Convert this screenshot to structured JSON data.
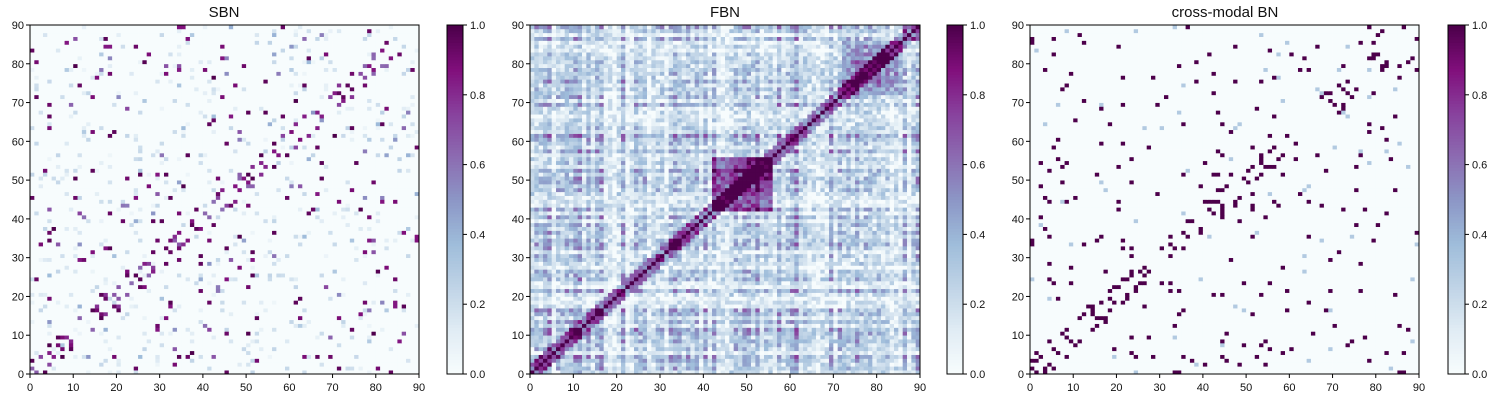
{
  "chart_data": [
    {
      "type": "heatmap",
      "title": "SBN",
      "xlim": [
        0,
        90
      ],
      "ylim": [
        0,
        90
      ],
      "x_ticks": [
        "0",
        "10",
        "20",
        "30",
        "40",
        "50",
        "60",
        "70",
        "80",
        "90"
      ],
      "y_ticks": [
        "0",
        "10",
        "20",
        "30",
        "40",
        "50",
        "60",
        "70",
        "80",
        "90"
      ],
      "matrix_size": 90,
      "pattern": "sparse",
      "colorbar": {
        "range": [
          0.0,
          1.0
        ],
        "ticks": [
          "0.0",
          "0.2",
          "0.4",
          "0.6",
          "0.8",
          "1.0"
        ]
      }
    },
    {
      "type": "heatmap",
      "title": "FBN",
      "xlim": [
        0,
        90
      ],
      "ylim": [
        0,
        90
      ],
      "x_ticks": [
        "0",
        "10",
        "20",
        "30",
        "40",
        "50",
        "60",
        "70",
        "80",
        "90"
      ],
      "y_ticks": [
        "0",
        "10",
        "20",
        "30",
        "40",
        "50",
        "60",
        "70",
        "80",
        "90"
      ],
      "matrix_size": 90,
      "pattern": "dense",
      "colorbar": {
        "range": [
          0.0,
          1.0
        ],
        "ticks": [
          "0.0",
          "0.2",
          "0.4",
          "0.6",
          "0.8",
          "1.0"
        ]
      }
    },
    {
      "type": "heatmap",
      "title": "cross-modal BN",
      "xlim": [
        0,
        90
      ],
      "ylim": [
        0,
        90
      ],
      "x_ticks": [
        "0",
        "10",
        "20",
        "30",
        "40",
        "50",
        "60",
        "70",
        "80",
        "90"
      ],
      "y_ticks": [
        "0",
        "10",
        "20",
        "30",
        "40",
        "50",
        "60",
        "70",
        "80",
        "90"
      ],
      "matrix_size": 90,
      "pattern": "binary-sparse",
      "colorbar": {
        "range": [
          0.0,
          1.0
        ],
        "ticks": [
          "0.0",
          "0.2",
          "0.4",
          "0.6",
          "0.8",
          "1.0"
        ]
      }
    }
  ],
  "colormap": [
    "#f7fcfd",
    "#e0ecf4",
    "#bfd3e6",
    "#9ebcda",
    "#8c96c6",
    "#8c6bb1",
    "#88419d",
    "#810f7c",
    "#4d004b"
  ]
}
